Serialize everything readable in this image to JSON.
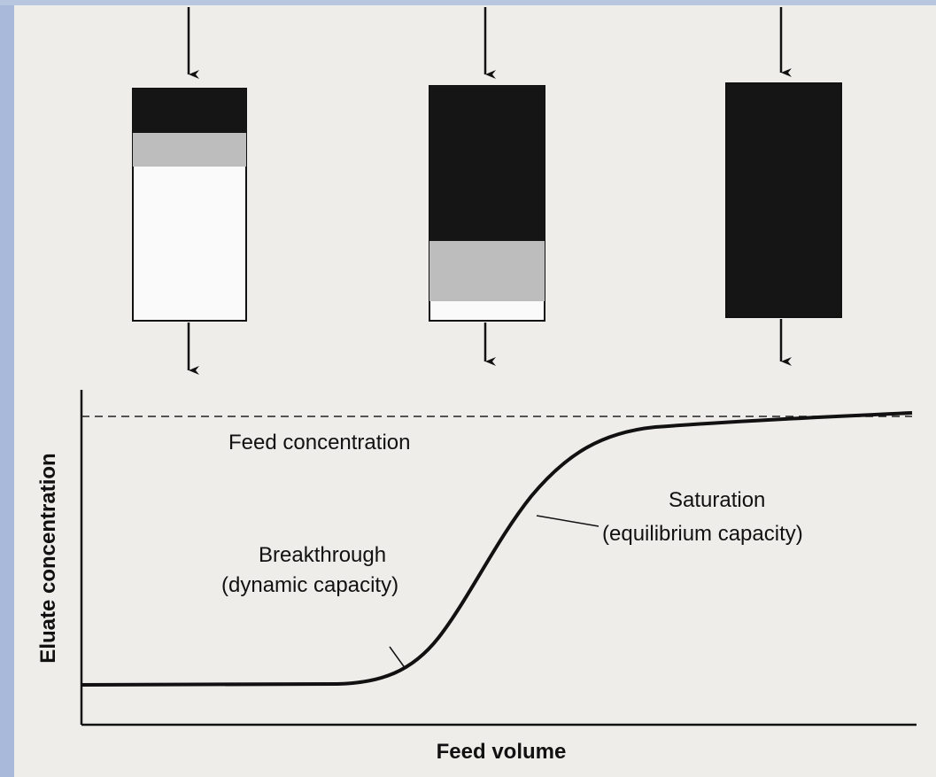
{
  "diagram": {
    "y_axis_label": "Eluate concentration",
    "x_axis_label": "Feed volume",
    "feed_line_label": "Feed concentration",
    "saturation": {
      "title": "Saturation",
      "subtitle": "(equilibrium capacity)"
    },
    "breakthrough": {
      "title": "Breakthrough",
      "subtitle": "(dynamic capacity)"
    }
  }
}
